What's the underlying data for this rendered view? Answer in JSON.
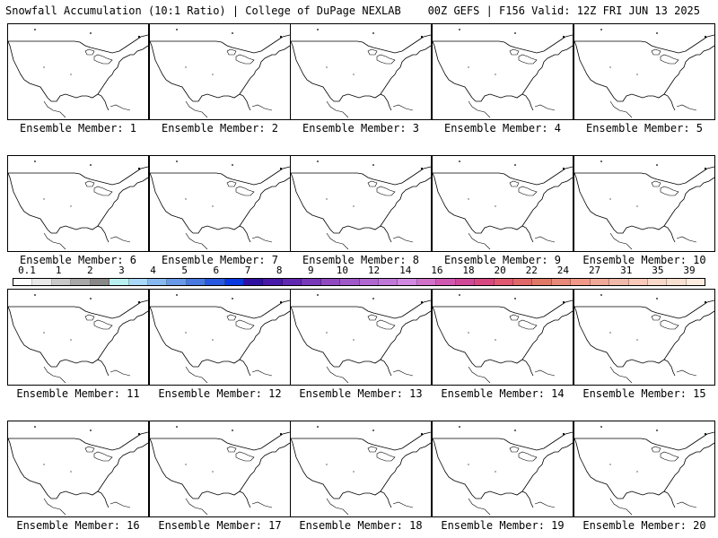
{
  "header": {
    "title": "Snowfall Accumulation (10:1 Ratio) | College of DuPage NEXLAB",
    "run_info": "00Z GEFS | F156 Valid: 12Z FRI JUN 13 2025"
  },
  "members": [
    {
      "label": "Ensemble Member: 1"
    },
    {
      "label": "Ensemble Member: 2"
    },
    {
      "label": "Ensemble Member: 3"
    },
    {
      "label": "Ensemble Member: 4"
    },
    {
      "label": "Ensemble Member: 5"
    },
    {
      "label": "Ensemble Member: 6"
    },
    {
      "label": "Ensemble Member: 7"
    },
    {
      "label": "Ensemble Member: 8"
    },
    {
      "label": "Ensemble Member: 9"
    },
    {
      "label": "Ensemble Member: 10"
    },
    {
      "label": "Ensemble Member: 11"
    },
    {
      "label": "Ensemble Member: 12"
    },
    {
      "label": "Ensemble Member: 13"
    },
    {
      "label": "Ensemble Member: 14"
    },
    {
      "label": "Ensemble Member: 15"
    },
    {
      "label": "Ensemble Member: 16"
    },
    {
      "label": "Ensemble Member: 17"
    },
    {
      "label": "Ensemble Member: 18"
    },
    {
      "label": "Ensemble Member: 19"
    },
    {
      "label": "Ensemble Member: 20"
    }
  ],
  "colorbar": {
    "labels": [
      "0.1",
      "1",
      "2",
      "3",
      "4",
      "5",
      "6",
      "7",
      "8",
      "9",
      "10",
      "12",
      "14",
      "16",
      "18",
      "20",
      "22",
      "24",
      "27",
      "31",
      "35",
      "39"
    ],
    "colors": [
      "#ffffff",
      "#e8e8e8",
      "#c8c8c8",
      "#a8a8a8",
      "#888888",
      "#b8f0f0",
      "#a8d8f8",
      "#88b8f0",
      "#6898e8",
      "#4878e0",
      "#2858e0",
      "#0838e0",
      "#3010a0",
      "#4818a8",
      "#6028b0",
      "#7838b8",
      "#9048c0",
      "#a058c8",
      "#b068d0",
      "#c078d8",
      "#d088e0",
      "#d070c8",
      "#d058b0",
      "#d04898",
      "#d84880",
      "#e05870",
      "#e06868",
      "#e07868",
      "#e88878",
      "#f09888",
      "#f0a898",
      "#f0b8a8",
      "#f8c8b8",
      "#f8d8c8",
      "#f8e0d0",
      "#fcece0"
    ]
  }
}
